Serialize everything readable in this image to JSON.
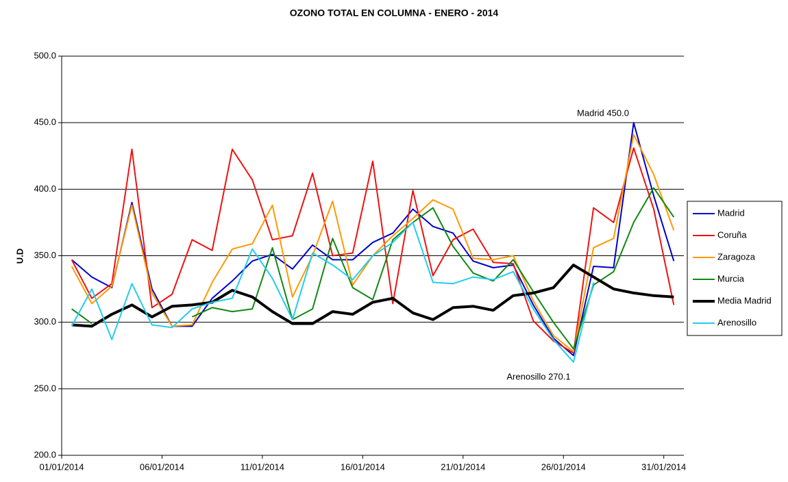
{
  "chart_data": {
    "type": "line",
    "title": "OZONO TOTAL EN COLUMNA  -   ENERO - 2014",
    "y_label": "U.D",
    "categories": [
      "01/01/2014",
      null,
      null,
      null,
      null,
      "06/01/2014",
      null,
      null,
      null,
      null,
      "11/01/2014",
      null,
      null,
      null,
      null,
      "16/01/2014",
      null,
      null,
      null,
      null,
      "21/01/2014",
      null,
      null,
      null,
      null,
      "26/01/2014",
      null,
      null,
      null,
      null,
      "31/01/2014"
    ],
    "series": [
      {
        "name": "Madrid",
        "color": "#0000cc",
        "width": 2,
        "values": [
          347,
          334,
          326,
          390,
          325,
          297,
          297,
          318,
          331,
          346,
          351,
          340,
          358,
          347,
          347,
          360,
          367,
          385,
          372,
          367,
          346,
          341,
          343,
          313,
          288,
          275,
          342,
          341,
          450,
          395,
          346
        ]
      },
      {
        "name": "Coruña",
        "color": "#ee1111",
        "width": 2,
        "values": [
          347,
          318,
          329,
          430,
          311,
          321,
          362,
          354,
          430,
          407,
          362,
          365,
          412,
          350,
          352,
          421,
          314,
          399,
          335,
          362,
          370,
          345,
          344,
          301,
          286,
          277,
          386,
          375,
          431,
          385,
          313
        ]
      },
      {
        "name": "Zaragoza",
        "color": "#ff9900",
        "width": 2,
        "values": [
          342,
          314,
          327,
          388,
          322,
          297,
          298,
          330,
          355,
          359,
          388,
          319,
          350,
          391,
          328,
          350,
          365,
          378,
          392,
          385,
          348,
          347,
          350,
          316,
          290,
          278,
          356,
          363,
          441,
          411,
          369
        ]
      },
      {
        "name": "Murcia",
        "color": "#118811",
        "width": 2,
        "values": [
          310,
          299,
          null,
          null,
          null,
          null,
          304,
          311,
          308,
          310,
          356,
          302,
          310,
          363,
          326,
          317,
          362,
          375,
          386,
          357,
          337,
          331,
          347,
          323,
          300,
          280,
          328,
          338,
          375,
          401,
          379
        ]
      },
      {
        "name": "Media Madrid",
        "color": "#000000",
        "width": 4,
        "values": [
          298,
          297,
          306,
          313,
          304,
          312,
          313,
          315,
          324,
          319,
          308,
          299,
          299,
          308,
          306,
          315,
          318,
          307,
          302,
          311,
          312,
          309,
          320,
          322,
          326,
          343,
          334,
          325,
          322,
          320,
          319
        ]
      },
      {
        "name": "Arenosillo",
        "color": "#22ccee",
        "width": 2,
        "values": [
          297,
          325,
          287,
          329,
          298,
          296,
          310,
          315,
          318,
          355,
          333,
          302,
          352,
          343,
          332,
          350,
          360,
          375,
          330,
          329,
          334,
          332,
          338,
          310,
          287,
          270.1,
          330,
          null,
          null,
          null,
          null
        ]
      }
    ],
    "annotations": [
      "Madrid 450.0",
      "Arenosillo 270.1"
    ],
    "ylim": [
      200,
      500
    ],
    "yticks": [
      {
        "value": 200,
        "label": "200.0"
      },
      {
        "value": 250,
        "label": "250.0"
      },
      {
        "value": 300,
        "label": "300.0"
      },
      {
        "value": 350,
        "label": "350.0"
      },
      {
        "value": 400,
        "label": "400.0"
      },
      {
        "value": 450,
        "label": "450.0"
      },
      {
        "value": 500,
        "label": "500.0"
      }
    ],
    "grid": true,
    "legend": "right"
  }
}
